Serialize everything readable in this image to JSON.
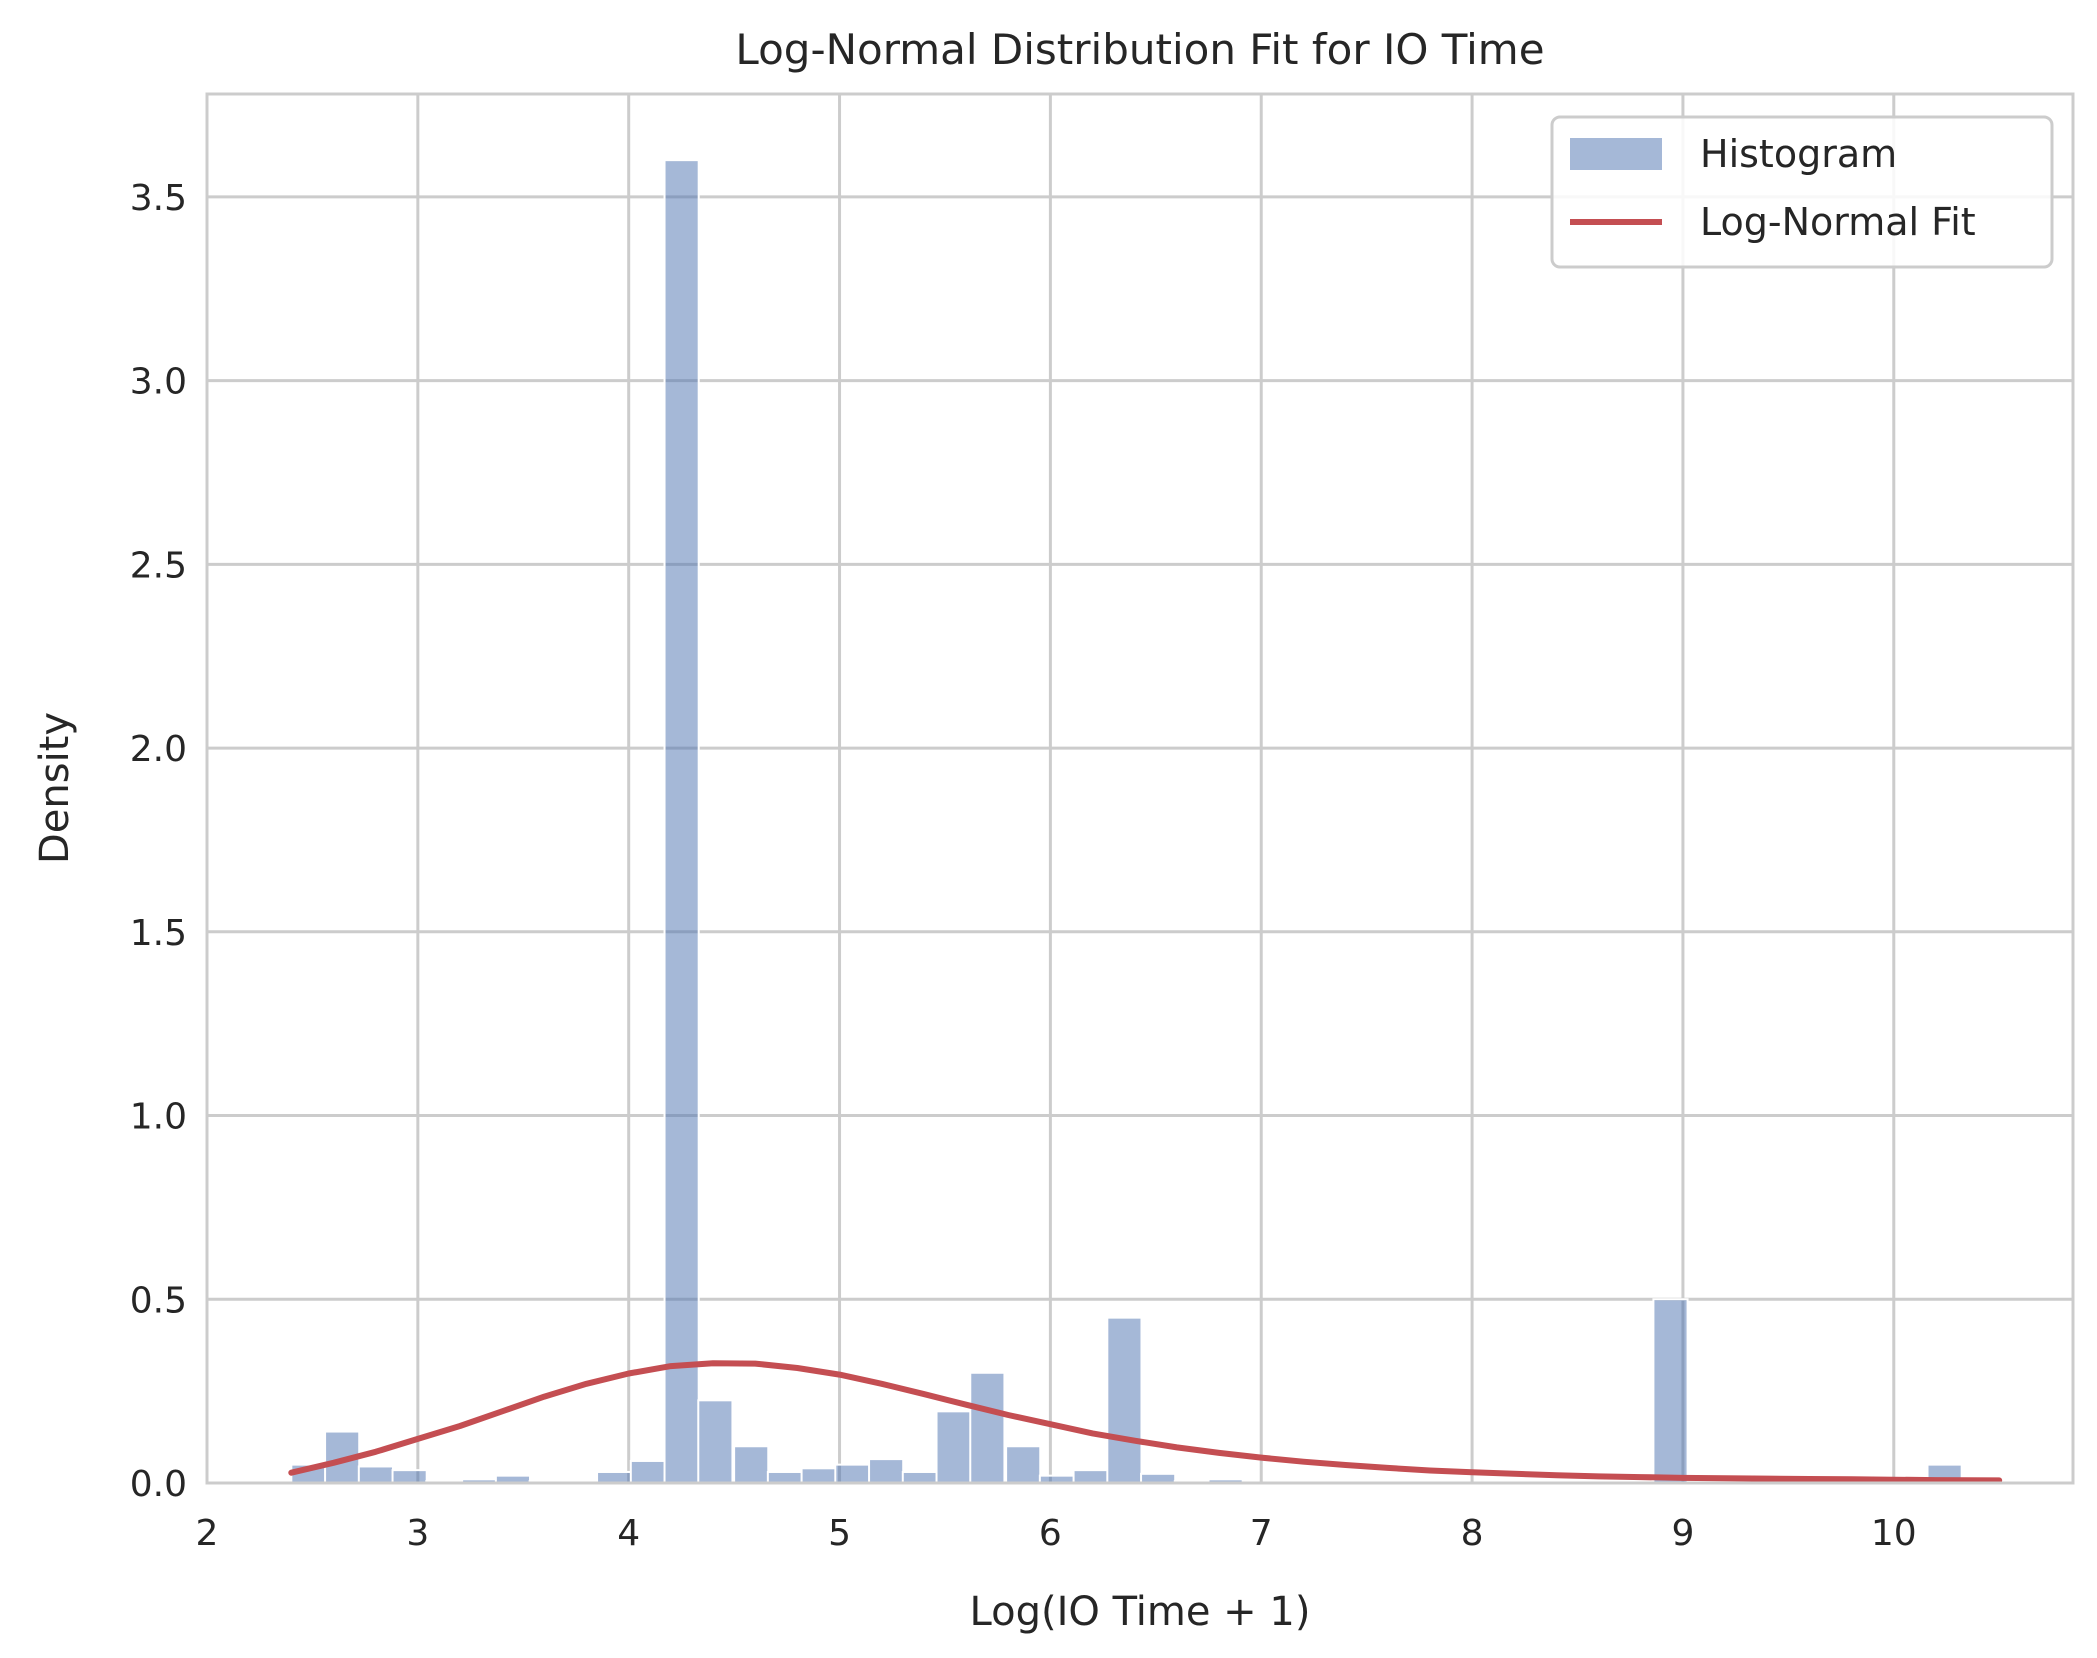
{
  "chart_data": {
    "type": "bar",
    "title": "Log-Normal Distribution Fit for IO Time",
    "xlabel": "Log(IO Time + 1)",
    "ylabel": "Density",
    "xlim": [
      2,
      10.85
    ],
    "ylim": [
      0,
      3.78
    ],
    "xticks": [
      2,
      3,
      4,
      5,
      6,
      7,
      8,
      9,
      10
    ],
    "xtick_labels": [
      "2",
      "3",
      "4",
      "5",
      "6",
      "7",
      "8",
      "9",
      "10"
    ],
    "yticks": [
      0,
      0.5,
      1.0,
      1.5,
      2.0,
      2.5,
      3.0,
      3.5
    ],
    "ytick_labels": [
      "0.0",
      "0.5",
      "1.0",
      "1.5",
      "2.0",
      "2.5",
      "3.0",
      "3.5"
    ],
    "grid": true,
    "legend_position": "top-right",
    "bin_width": 0.162,
    "histogram": {
      "name": "Histogram",
      "color": "#4c72b0",
      "opacity": 0.5,
      "bin_starts": [
        2.4,
        2.56,
        2.72,
        2.88,
        3.04,
        3.21,
        3.37,
        3.53,
        3.69,
        3.85,
        4.01,
        4.17,
        4.33,
        4.5,
        4.66,
        4.82,
        4.98,
        5.14,
        5.3,
        5.46,
        5.62,
        5.79,
        5.95,
        6.11,
        6.27,
        6.43,
        6.59,
        6.75,
        8.86,
        10.16
      ],
      "values": [
        0.05,
        0.14,
        0.045,
        0.035,
        0.005,
        0.01,
        0.02,
        0.005,
        0.005,
        0.03,
        0.06,
        3.6,
        0.225,
        0.1,
        0.03,
        0.04,
        0.05,
        0.065,
        0.03,
        0.195,
        0.3,
        0.1,
        0.02,
        0.035,
        0.45,
        0.025,
        0.005,
        0.01,
        0.5,
        0.05
      ]
    },
    "series": [
      {
        "name": "Log-Normal Fit",
        "color": "#c44e52",
        "x": [
          2.4,
          2.6,
          2.8,
          3.0,
          3.2,
          3.4,
          3.6,
          3.8,
          4.0,
          4.2,
          4.4,
          4.6,
          4.8,
          5.0,
          5.2,
          5.4,
          5.6,
          5.8,
          6.0,
          6.2,
          6.4,
          6.6,
          6.8,
          7.0,
          7.2,
          7.4,
          7.6,
          7.8,
          8.0,
          8.2,
          8.4,
          8.6,
          8.8,
          9.0,
          9.2,
          9.4,
          9.6,
          9.8,
          10.0,
          10.2,
          10.5
        ],
        "y": [
          0.028,
          0.055,
          0.085,
          0.12,
          0.155,
          0.195,
          0.235,
          0.27,
          0.298,
          0.318,
          0.326,
          0.325,
          0.313,
          0.295,
          0.27,
          0.242,
          0.213,
          0.185,
          0.16,
          0.135,
          0.115,
          0.097,
          0.082,
          0.069,
          0.058,
          0.049,
          0.041,
          0.034,
          0.029,
          0.025,
          0.021,
          0.018,
          0.016,
          0.014,
          0.013,
          0.012,
          0.011,
          0.01,
          0.009,
          0.008,
          0.007
        ]
      }
    ]
  }
}
